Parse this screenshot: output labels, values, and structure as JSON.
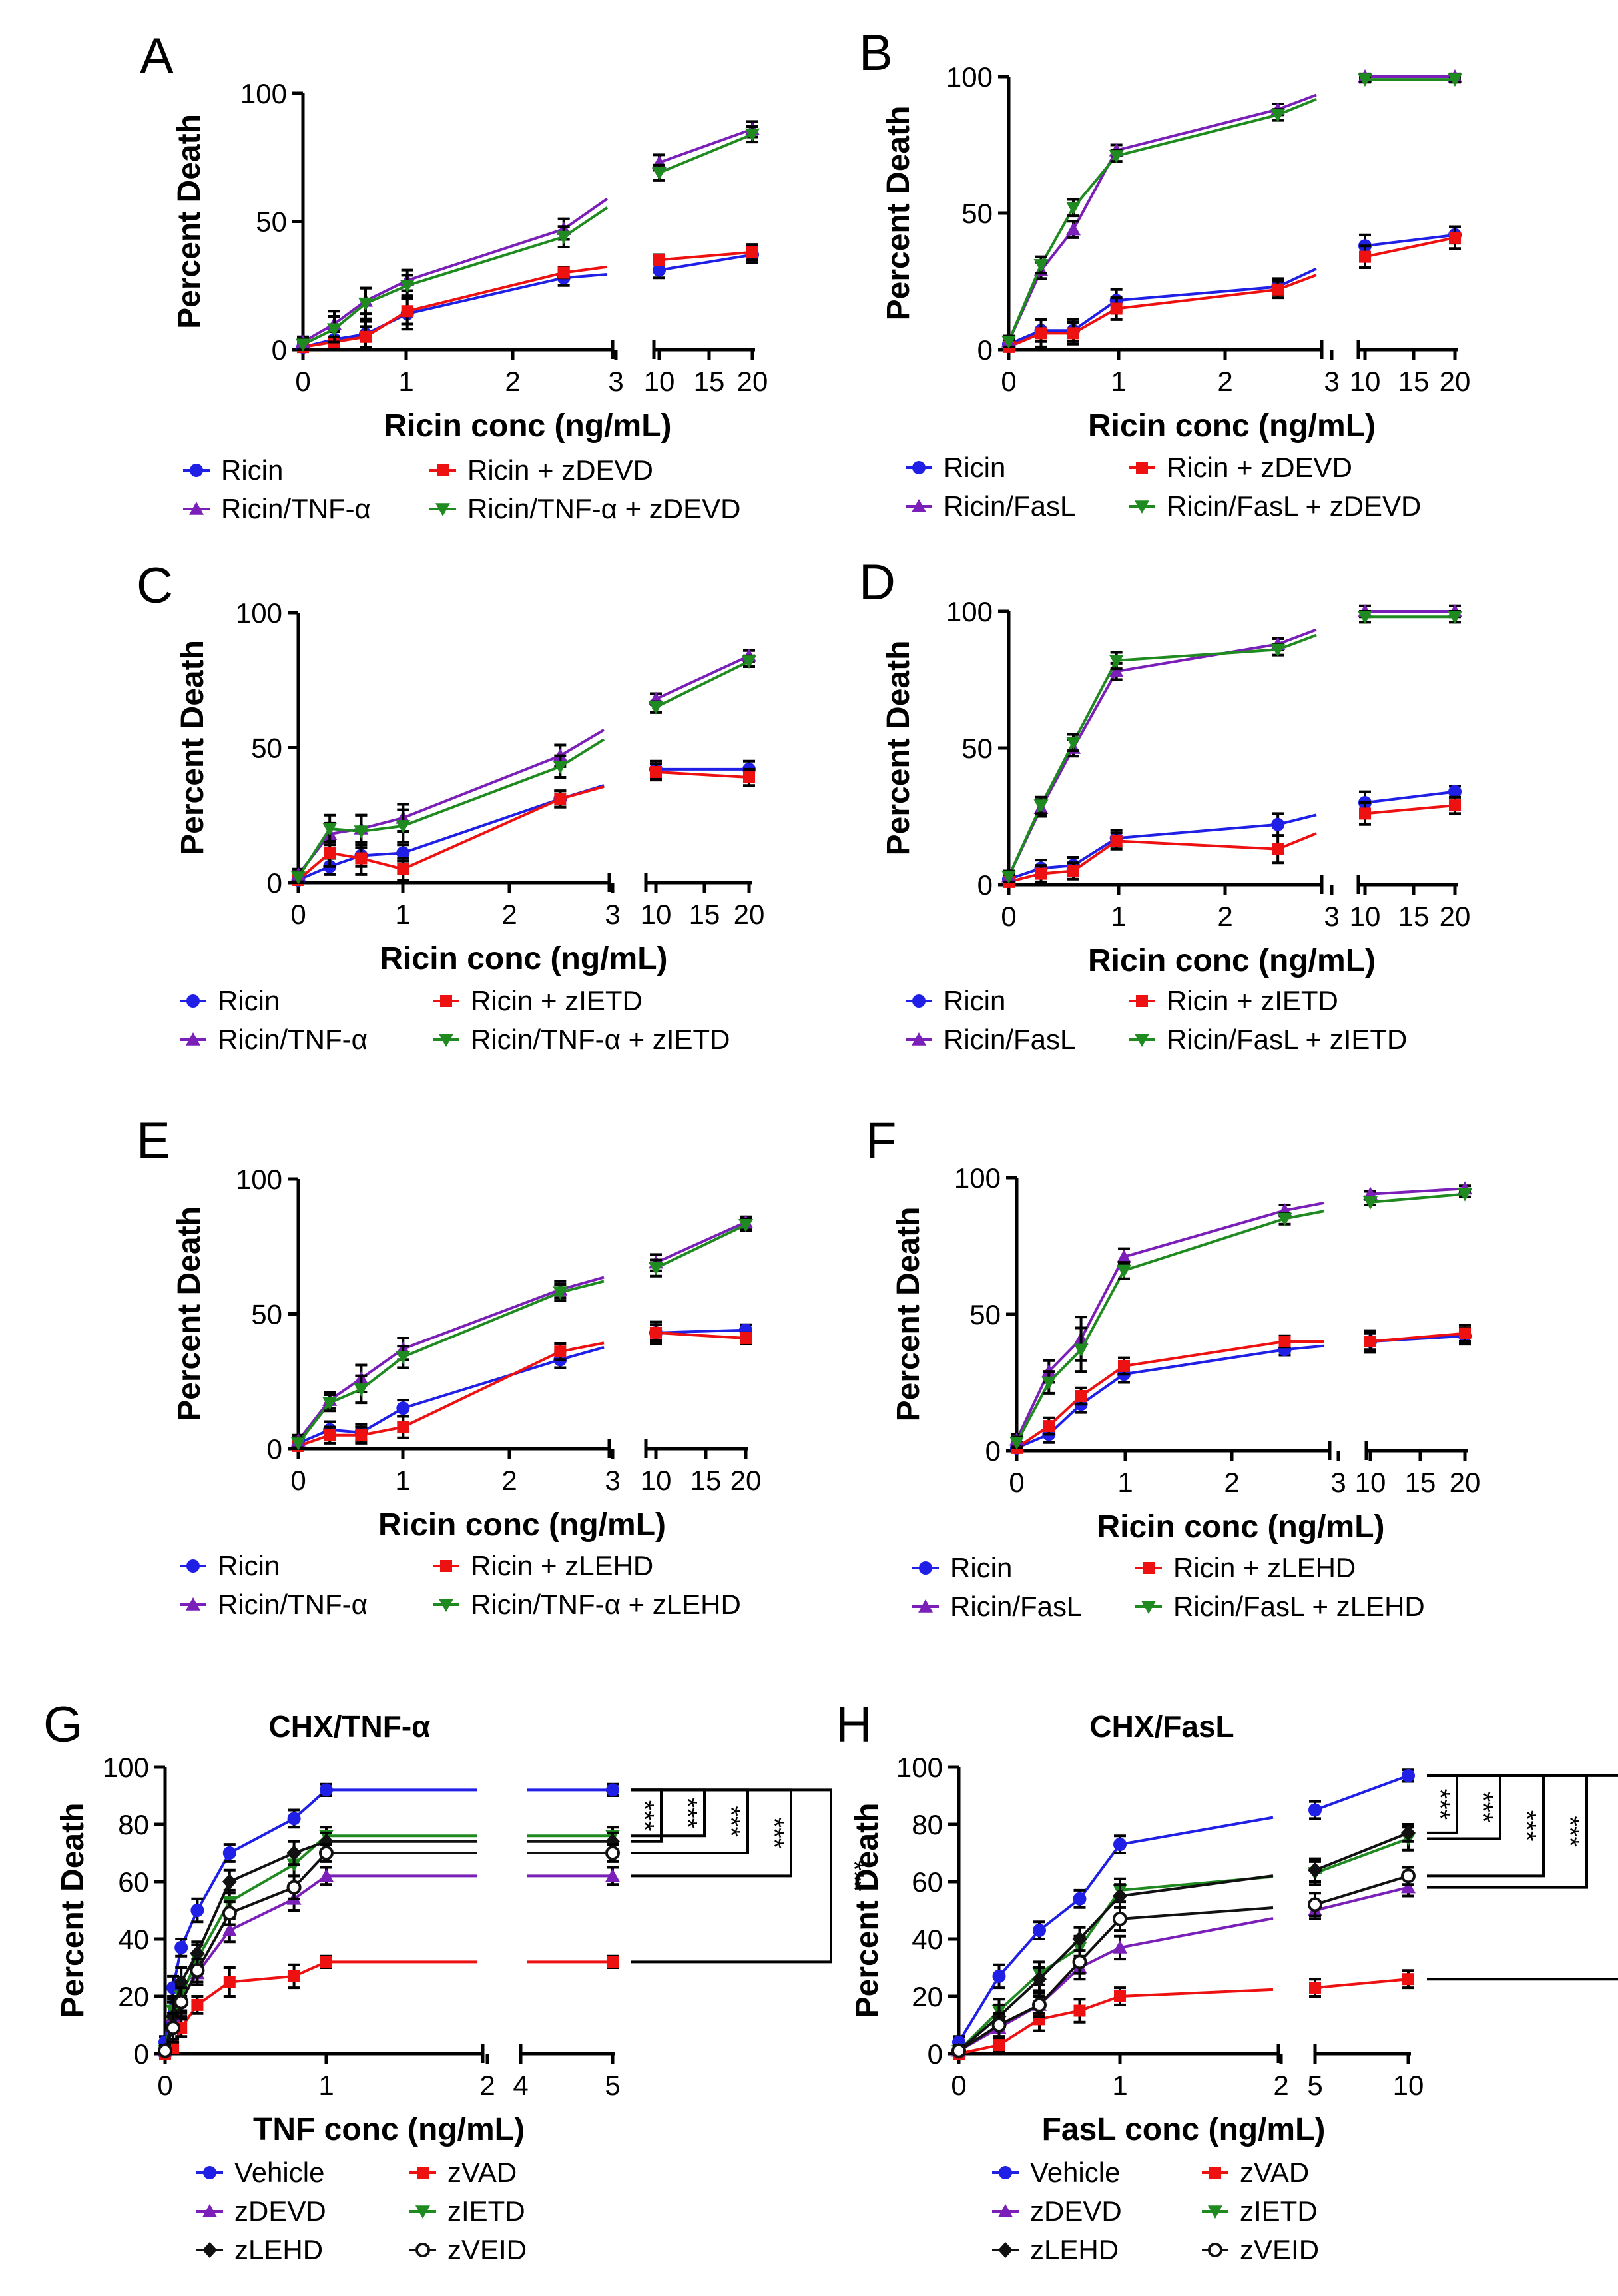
{
  "colors": {
    "blue": "#1f1fe6",
    "red": "#ee1111",
    "purple": "#7a1fb8",
    "green": "#1f8a1f",
    "black": "#111111"
  },
  "chart_data": [
    {
      "panel": "A",
      "type": "line",
      "title": "",
      "xlabel": "Ricin conc (ng/mL)",
      "ylabel": "Percent Death",
      "x": [
        0,
        0.3,
        0.6,
        1,
        2.5,
        10,
        20
      ],
      "ylim": [
        0,
        100
      ],
      "yticks": [
        "0",
        "50",
        "100"
      ],
      "xticks_left": [
        "0",
        "1",
        "2",
        "3"
      ],
      "xticks_right": [
        "10",
        "15",
        "20"
      ],
      "series": [
        {
          "name": "Ricin",
          "color": "blue",
          "marker": "dot",
          "values": [
            1,
            4,
            6,
            14,
            28,
            31,
            37
          ],
          "errors": [
            2,
            4,
            5,
            6,
            3,
            3,
            3
          ]
        },
        {
          "name": "Ricin + zDEVD",
          "color": "red",
          "marker": "square",
          "values": [
            1,
            3,
            5,
            15,
            30,
            35,
            38
          ],
          "errors": [
            2,
            4,
            4,
            5,
            2,
            2,
            3
          ]
        },
        {
          "name": "Ricin/TNF-α",
          "color": "purple",
          "marker": "tri-up",
          "values": [
            3,
            10,
            19,
            27,
            47,
            73,
            86
          ],
          "errors": [
            2,
            5,
            5,
            4,
            4,
            3,
            3
          ]
        },
        {
          "name": "Ricin/TNF-α + zDEVD",
          "color": "green",
          "marker": "tri-down",
          "values": [
            2,
            8,
            18,
            25,
            44,
            69,
            84
          ],
          "errors": [
            2,
            5,
            6,
            4,
            4,
            3,
            3
          ]
        }
      ]
    },
    {
      "panel": "B",
      "type": "line",
      "title": "",
      "xlabel": "Ricin conc (ng/mL)",
      "ylabel": "Percent Death",
      "x": [
        0,
        0.3,
        0.6,
        1,
        2.5,
        10,
        20
      ],
      "ylim": [
        0,
        100
      ],
      "yticks": [
        "0",
        "50",
        "100"
      ],
      "xticks_left": [
        "0",
        "1",
        "2",
        "3"
      ],
      "xticks_right": [
        "10",
        "15",
        "20"
      ],
      "series": [
        {
          "name": "Ricin",
          "color": "blue",
          "marker": "dot",
          "values": [
            2,
            7,
            7,
            18,
            23,
            38,
            42
          ],
          "errors": [
            2,
            4,
            4,
            4,
            3,
            4,
            3
          ]
        },
        {
          "name": "Ricin + zDEVD",
          "color": "red",
          "marker": "square",
          "values": [
            1,
            6,
            6,
            15,
            22,
            34,
            41
          ],
          "errors": [
            2,
            5,
            4,
            4,
            3,
            4,
            4
          ]
        },
        {
          "name": "Ricin/FasL",
          "color": "purple",
          "marker": "tri-up",
          "values": [
            3,
            29,
            44,
            73,
            88,
            100,
            100
          ],
          "errors": [
            2,
            3,
            3,
            2,
            2,
            1,
            1
          ]
        },
        {
          "name": "Ricin/FasL + zDEVD",
          "color": "green",
          "marker": "tri-down",
          "values": [
            3,
            31,
            52,
            71,
            86,
            99,
            99
          ],
          "errors": [
            2,
            3,
            3,
            2,
            2,
            1,
            1
          ]
        }
      ]
    },
    {
      "panel": "C",
      "type": "line",
      "title": "",
      "xlabel": "Ricin conc (ng/mL)",
      "ylabel": "Percent Death",
      "x": [
        0,
        0.3,
        0.6,
        1,
        2.5,
        10,
        20
      ],
      "ylim": [
        0,
        100
      ],
      "yticks": [
        "0",
        "50",
        "100"
      ],
      "xticks_left": [
        "0",
        "1",
        "2",
        "3"
      ],
      "xticks_right": [
        "10",
        "15",
        "20"
      ],
      "series": [
        {
          "name": "Ricin",
          "color": "blue",
          "marker": "dot",
          "values": [
            1,
            6,
            10,
            11,
            31,
            42,
            42
          ],
          "errors": [
            2,
            3,
            4,
            3,
            3,
            3,
            3
          ]
        },
        {
          "name": "Ricin + zIETD",
          "color": "red",
          "marker": "square",
          "values": [
            1,
            11,
            9,
            5,
            31,
            41,
            39
          ],
          "errors": [
            2,
            5,
            6,
            4,
            3,
            3,
            3
          ]
        },
        {
          "name": "Ricin/TNF-α",
          "color": "purple",
          "marker": "tri-up",
          "values": [
            3,
            18,
            20,
            24,
            47,
            68,
            84
          ],
          "errors": [
            2,
            4,
            5,
            5,
            4,
            2,
            2
          ]
        },
        {
          "name": "Ricin/TNF-α + zIETD",
          "color": "green",
          "marker": "tri-down",
          "values": [
            2,
            20,
            19,
            21,
            43,
            65,
            82
          ],
          "errors": [
            2,
            5,
            6,
            6,
            4,
            2,
            2
          ]
        }
      ]
    },
    {
      "panel": "D",
      "type": "line",
      "title": "",
      "xlabel": "Ricin conc (ng/mL)",
      "ylabel": "Percent Death",
      "x": [
        0,
        0.3,
        0.6,
        1,
        2.5,
        10,
        20
      ],
      "ylim": [
        0,
        100
      ],
      "yticks": [
        "0",
        "50",
        "100"
      ],
      "xticks_left": [
        "0",
        "1",
        "2",
        "3"
      ],
      "xticks_right": [
        "10",
        "15",
        "20"
      ],
      "series": [
        {
          "name": "Ricin",
          "color": "blue",
          "marker": "dot",
          "values": [
            2,
            6,
            7,
            17,
            22,
            30,
            34
          ],
          "errors": [
            2,
            3,
            3,
            3,
            4,
            4,
            2
          ]
        },
        {
          "name": "Ricin + zIETD",
          "color": "red",
          "marker": "square",
          "values": [
            1,
            4,
            5,
            16,
            13,
            26,
            29
          ],
          "errors": [
            2,
            3,
            3,
            3,
            5,
            4,
            3
          ]
        },
        {
          "name": "Ricin/FasL",
          "color": "purple",
          "marker": "tri-up",
          "values": [
            3,
            28,
            50,
            78,
            88,
            100,
            100
          ],
          "errors": [
            2,
            3,
            3,
            3,
            2,
            2,
            2
          ]
        },
        {
          "name": "Ricin/FasL + zIETD",
          "color": "green",
          "marker": "tri-down",
          "values": [
            3,
            29,
            52,
            82,
            86,
            98,
            98
          ],
          "errors": [
            2,
            3,
            3,
            3,
            2,
            2,
            2
          ]
        }
      ]
    },
    {
      "panel": "E",
      "type": "line",
      "title": "",
      "xlabel": "Ricin conc (ng/mL)",
      "ylabel": "Percent Death",
      "x": [
        0,
        0.3,
        0.6,
        1,
        2.5,
        10,
        20
      ],
      "ylim": [
        0,
        100
      ],
      "yticks": [
        "0",
        "50",
        "100"
      ],
      "xticks_left": [
        "0",
        "1",
        "2",
        "3"
      ],
      "xticks_right": [
        "10",
        "15",
        "20"
      ],
      "series": [
        {
          "name": "Ricin",
          "color": "blue",
          "marker": "dot",
          "values": [
            2,
            7,
            6,
            15,
            33,
            43,
            44
          ],
          "errors": [
            2,
            3,
            3,
            3,
            3,
            3,
            2
          ]
        },
        {
          "name": "Ricin + zLEHD",
          "color": "red",
          "marker": "square",
          "values": [
            1,
            5,
            5,
            8,
            36,
            43,
            41
          ],
          "errors": [
            2,
            3,
            3,
            4,
            3,
            4,
            2
          ]
        },
        {
          "name": "Ricin/TNF-α",
          "color": "purple",
          "marker": "tri-up",
          "values": [
            3,
            18,
            26,
            37,
            59,
            69,
            84
          ],
          "errors": [
            2,
            3,
            5,
            4,
            3,
            3,
            2
          ]
        },
        {
          "name": "Ricin/TNF-α + zLEHD",
          "color": "green",
          "marker": "tri-down",
          "values": [
            2,
            17,
            22,
            34,
            58,
            67,
            83
          ],
          "errors": [
            2,
            3,
            5,
            4,
            3,
            3,
            2
          ]
        }
      ]
    },
    {
      "panel": "F",
      "type": "line",
      "title": "",
      "xlabel": "Ricin conc (ng/mL)",
      "ylabel": "Percent Death",
      "x": [
        0,
        0.3,
        0.6,
        1,
        2.5,
        10,
        20
      ],
      "ylim": [
        0,
        100
      ],
      "yticks": [
        "0",
        "50",
        "100"
      ],
      "xticks_left": [
        "0",
        "1",
        "2",
        "3"
      ],
      "xticks_right": [
        "10",
        "15",
        "20"
      ],
      "series": [
        {
          "name": "Ricin",
          "color": "blue",
          "marker": "dot",
          "values": [
            1,
            6,
            17,
            28,
            37,
            40,
            42
          ],
          "errors": [
            2,
            3,
            3,
            3,
            2,
            4,
            3
          ]
        },
        {
          "name": "Ricin + zLEHD",
          "color": "red",
          "marker": "square",
          "values": [
            1,
            9,
            20,
            31,
            40,
            40,
            43
          ],
          "errors": [
            2,
            3,
            3,
            3,
            2,
            3,
            3
          ]
        },
        {
          "name": "Ricin/FasL",
          "color": "purple",
          "marker": "tri-up",
          "values": [
            4,
            29,
            41,
            71,
            88,
            94,
            96
          ],
          "errors": [
            2,
            4,
            8,
            3,
            2,
            1,
            1
          ]
        },
        {
          "name": "Ricin/FasL + zLEHD",
          "color": "green",
          "marker": "tri-down",
          "values": [
            3,
            25,
            37,
            66,
            85,
            91,
            94
          ],
          "errors": [
            2,
            4,
            8,
            3,
            2,
            1,
            1
          ]
        }
      ]
    },
    {
      "panel": "G",
      "type": "line",
      "title": "CHX/TNF-α",
      "xlabel": "TNF conc (ng/mL)",
      "ylabel": "Percent Death",
      "x": [
        0,
        0.05,
        0.1,
        0.2,
        0.4,
        0.8,
        1,
        5
      ],
      "ylim": [
        0,
        100
      ],
      "yticks": [
        "0",
        "20",
        "40",
        "60",
        "80",
        "100"
      ],
      "xticks_left": [
        "0",
        "1",
        "2"
      ],
      "xticks_right": [
        "4",
        "5"
      ],
      "significance": [
        "***",
        "***",
        "***",
        "***",
        "***"
      ],
      "series": [
        {
          "name": "Vehicle",
          "color": "blue",
          "marker": "dot",
          "values": [
            4,
            23,
            37,
            50,
            70,
            82,
            92,
            92
          ],
          "errors": [
            2,
            4,
            3,
            4,
            3,
            3,
            2,
            2
          ]
        },
        {
          "name": "zVAD",
          "color": "red",
          "marker": "square",
          "values": [
            0,
            2,
            9,
            17,
            25,
            27,
            32,
            32
          ],
          "errors": [
            1,
            3,
            3,
            3,
            5,
            4,
            2,
            2
          ]
        },
        {
          "name": "zDEVD",
          "color": "purple",
          "marker": "tri-up",
          "values": [
            1,
            13,
            19,
            28,
            43,
            54,
            62,
            62
          ],
          "errors": [
            2,
            5,
            5,
            4,
            4,
            4,
            3,
            3
          ]
        },
        {
          "name": "zIETD",
          "color": "green",
          "marker": "tri-down",
          "values": [
            1,
            15,
            20,
            33,
            53,
            66,
            76,
            76
          ],
          "errors": [
            2,
            5,
            5,
            5,
            4,
            4,
            3,
            3
          ]
        },
        {
          "name": "zLEHD",
          "color": "black",
          "marker": "diamond",
          "values": [
            1,
            13,
            25,
            35,
            60,
            70,
            74,
            74
          ],
          "errors": [
            2,
            5,
            5,
            4,
            4,
            4,
            3,
            3
          ]
        },
        {
          "name": "zVEID",
          "color": "black",
          "marker": "open-circle",
          "values": [
            1,
            9,
            18,
            29,
            49,
            58,
            70,
            70
          ],
          "errors": [
            2,
            5,
            5,
            4,
            4,
            4,
            3,
            3
          ]
        }
      ]
    },
    {
      "panel": "H",
      "type": "line",
      "title": "CHX/FasL",
      "xlabel": "FasL conc (ng/mL)",
      "ylabel": "Percent Death",
      "x": [
        0,
        0.25,
        0.5,
        0.75,
        1,
        5,
        10
      ],
      "ylim": [
        0,
        100
      ],
      "yticks": [
        "0",
        "20",
        "40",
        "60",
        "80",
        "100"
      ],
      "xticks_left": [
        "0",
        "1",
        "2"
      ],
      "xticks_right": [
        "5",
        "10"
      ],
      "significance": [
        "***",
        "***",
        "***",
        "***",
        "***"
      ],
      "series": [
        {
          "name": "Vehicle",
          "color": "blue",
          "marker": "dot",
          "values": [
            4,
            27,
            43,
            54,
            73,
            85,
            97
          ],
          "errors": [
            2,
            4,
            3,
            3,
            3,
            3,
            2
          ]
        },
        {
          "name": "zVAD",
          "color": "red",
          "marker": "square",
          "values": [
            0,
            3,
            12,
            15,
            20,
            23,
            26
          ],
          "errors": [
            1,
            2,
            4,
            4,
            3,
            3,
            3
          ]
        },
        {
          "name": "zDEVD",
          "color": "purple",
          "marker": "tri-up",
          "values": [
            1,
            9,
            17,
            30,
            37,
            50,
            58
          ],
          "errors": [
            2,
            3,
            3,
            4,
            4,
            3,
            3
          ]
        },
        {
          "name": "zIETD",
          "color": "green",
          "marker": "tri-down",
          "values": [
            1,
            15,
            28,
            37,
            57,
            63,
            75
          ],
          "errors": [
            2,
            4,
            4,
            4,
            4,
            4,
            4
          ]
        },
        {
          "name": "zLEHD",
          "color": "black",
          "marker": "diamond",
          "values": [
            1,
            13,
            26,
            40,
            55,
            64,
            77
          ],
          "errors": [
            2,
            4,
            4,
            4,
            4,
            4,
            3
          ]
        },
        {
          "name": "zVEID",
          "color": "black",
          "marker": "open-circle",
          "values": [
            1,
            10,
            17,
            32,
            47,
            52,
            62
          ],
          "errors": [
            2,
            4,
            4,
            4,
            4,
            4,
            3
          ]
        }
      ]
    }
  ]
}
